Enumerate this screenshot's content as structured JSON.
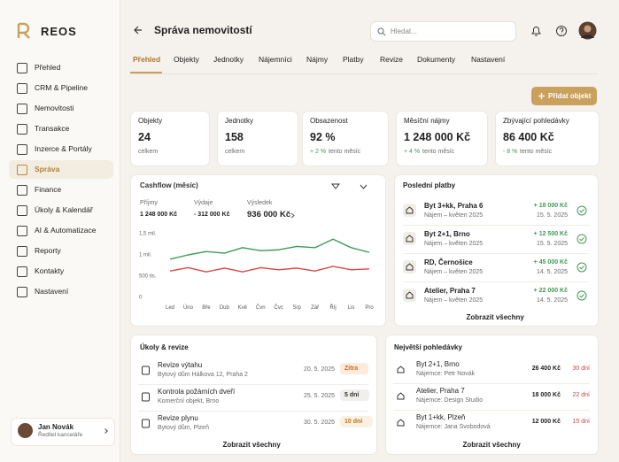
{
  "brand": "REOS",
  "sidebar": {
    "items": [
      "Přehled",
      "CRM & Pipeline",
      "Nemovitosti",
      "Transakce",
      "Inzerce & Portály",
      "Správa",
      "Finance",
      "Úkoly & Kalendář",
      "AI & Automatizace",
      "Reporty",
      "Kontakty",
      "Nastavení"
    ],
    "user": {
      "name": "Jan Novák",
      "role": "Ředitel kanceláře"
    }
  },
  "header": {
    "title": "Správa nemovitostí",
    "search": "Hledat..."
  },
  "tabs": [
    "Přehled",
    "Objekty",
    "Jednotky",
    "Nájemníci",
    "Nájmy",
    "Platby",
    "Revize",
    "Dokumenty",
    "Nastavení"
  ],
  "add_button": "Přidat objekt",
  "kpis": [
    {
      "label": "Objekty",
      "value": "24",
      "note": "celkem"
    },
    {
      "label": "Jednotky",
      "value": "158",
      "note": "celkem"
    },
    {
      "label": "Obsazenost",
      "value": "92 %",
      "change": "+ 2 %",
      "note": "tento měsíc"
    },
    {
      "label": "Měsíční nájmy",
      "value": "1 248 000 Kč",
      "change": "+ 4 %",
      "note": "tento měsíc"
    },
    {
      "label": "Zbývající pohledávky",
      "value": "86 400 Kč",
      "change": "- 8 %",
      "note": "tento měsíc"
    }
  ],
  "cashflow": {
    "title": "Cashflow (měsíc)",
    "summary": [
      {
        "label": "Příjmy",
        "value": "1 248 000 Kč"
      },
      {
        "label": "Výdaje",
        "value": "- 312 000 Kč"
      },
      {
        "label": "Výsledek",
        "value": "936 000 Kč"
      }
    ],
    "chart": {
      "type": "line",
      "categories": [
        "Led",
        "Úno",
        "Bře",
        "Dub",
        "Kvě",
        "Čvn",
        "Čvc",
        "Srp",
        "Zář",
        "Říj",
        "Lis",
        "Pro"
      ],
      "series": [
        {
          "color": "#3f9a55",
          "values": [
            900000,
            1000000,
            1080000,
            1040000,
            1170000,
            1100000,
            1120000,
            1200000,
            1170000,
            1370000,
            1170000,
            1060000
          ]
        },
        {
          "color": "#e04848",
          "values": [
            620000,
            700000,
            600000,
            690000,
            600000,
            700000,
            650000,
            690000,
            620000,
            730000,
            650000,
            670000
          ]
        }
      ],
      "ylim": [
        0,
        1500000
      ],
      "yticks": [
        {
          "value": 0,
          "label": "0"
        },
        {
          "value": 500000,
          "label": "500 tis."
        },
        {
          "value": 1000000,
          "label": "1 mil."
        },
        {
          "value": 1500000,
          "label": "1,5 mil."
        }
      ],
      "grid": false
    }
  },
  "payments": {
    "title": "Poslední platby",
    "items": [
      {
        "title": "Byt 3+kk, Praha 6",
        "subtitle": "Nájem – květen 2025",
        "amount": "+ 18 000 Kč",
        "date": "15. 5. 2025"
      },
      {
        "title": "Byt 2+1, Brno",
        "subtitle": "Nájem – květen 2025",
        "amount": "+ 12 500 Kč",
        "date": "15. 5. 2025"
      },
      {
        "title": "RD, Černošice",
        "subtitle": "Nájem – květen 2025",
        "amount": "+ 45 000 Kč",
        "date": "14. 5. 2025"
      },
      {
        "title": "Atelier, Praha 7",
        "subtitle": "Nájem – květen 2025",
        "amount": "+ 22 000 Kč",
        "date": "14. 5. 2025"
      }
    ],
    "link": "Zobrazit všechny"
  },
  "tasks": {
    "title": "Úkoly & revize",
    "items": [
      {
        "title": "Revize výtahu",
        "subtitle": "Bytový dům Hálkova 12, Praha 2",
        "date": "20. 5. 2025",
        "badge": "Zítra"
      },
      {
        "title": "Kontrola požárních dveří",
        "subtitle": "Komerční objekt, Brno",
        "date": "25. 5. 2025",
        "badge": "5 dní"
      },
      {
        "title": "Revize plynu",
        "subtitle": "Bytový dům, Plzeň",
        "date": "30. 5. 2025",
        "badge": "10 dní"
      }
    ],
    "link": "Zobrazit všechny"
  },
  "debts": {
    "title": "Největší pohledávky",
    "items": [
      {
        "title": "Byt 2+1, Brno",
        "subtitle": "Nájemce: Petr Novák",
        "amount": "26 400 Kč",
        "days": "30 dní"
      },
      {
        "title": "Atelier, Praha 7",
        "subtitle": "Nájemce: Design Studio",
        "amount": "18 000 Kč",
        "days": "22 dní"
      },
      {
        "title": "Byt 1+kk, Plzeň",
        "subtitle": "Nájemce: Jana Svobodová",
        "amount": "12 000 Kč",
        "days": "15 dní"
      }
    ],
    "link": "Zobrazit všechny"
  }
}
